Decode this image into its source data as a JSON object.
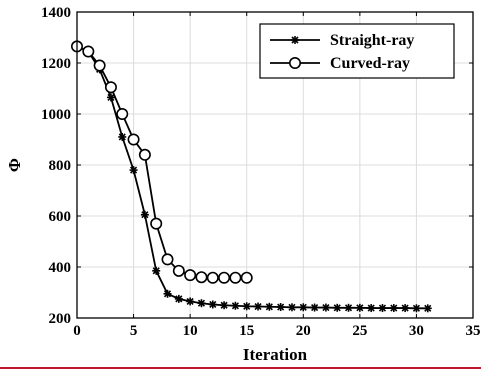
{
  "chart_data": {
    "type": "line",
    "xlabel": "Iteration",
    "ylabel": "Φ",
    "xlim": [
      0,
      35
    ],
    "ylim": [
      200,
      1400
    ],
    "xticks": [
      0,
      5,
      10,
      15,
      20,
      25,
      30,
      35
    ],
    "yticks": [
      200,
      400,
      600,
      800,
      1000,
      1200,
      1400
    ],
    "grid": true,
    "legend_position": "top-right",
    "series": [
      {
        "name": "Straight-ray",
        "marker": "asterisk",
        "color": "#000000",
        "x": [
          0,
          1,
          2,
          3,
          4,
          5,
          6,
          7,
          8,
          9,
          10,
          11,
          12,
          13,
          14,
          15,
          16,
          17,
          18,
          19,
          20,
          21,
          22,
          23,
          24,
          25,
          26,
          27,
          28,
          29,
          30,
          31
        ],
        "y": [
          1265,
          1245,
          1175,
          1065,
          910,
          780,
          605,
          385,
          295,
          275,
          265,
          258,
          253,
          250,
          248,
          246,
          245,
          244,
          243,
          242,
          242,
          241,
          241,
          240,
          240,
          240,
          239,
          239,
          239,
          239,
          238,
          238
        ]
      },
      {
        "name": "Curved-ray",
        "marker": "circle",
        "color": "#000000",
        "x": [
          0,
          1,
          2,
          3,
          4,
          5,
          6,
          7,
          8,
          9,
          10,
          11,
          12,
          13,
          14,
          15
        ],
        "y": [
          1265,
          1245,
          1190,
          1105,
          1000,
          900,
          840,
          570,
          430,
          385,
          368,
          360,
          358,
          358,
          358,
          358
        ]
      }
    ]
  }
}
